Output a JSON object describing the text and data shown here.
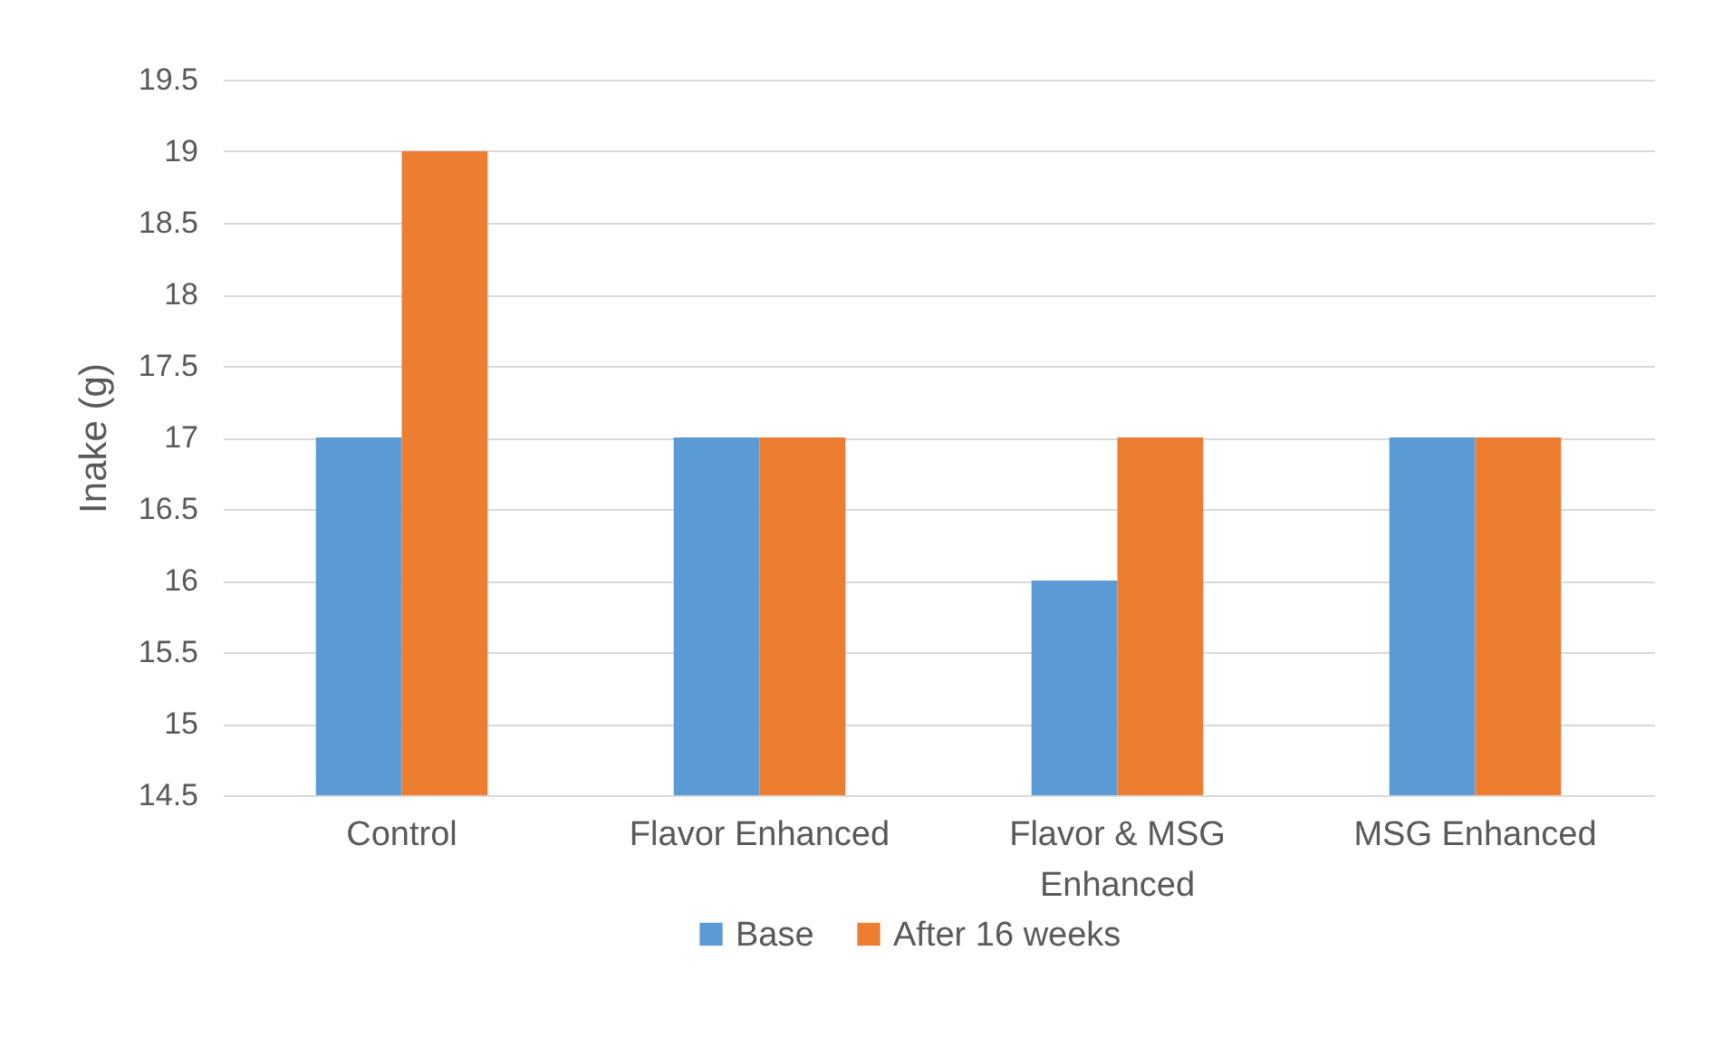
{
  "chart_data": {
    "type": "bar",
    "ylabel": "Inake (g)",
    "categories": [
      "Control",
      "Flavor Enhanced",
      "Flavor & MSG Enhanced",
      "MSG Enhanced"
    ],
    "series": [
      {
        "name": "Base",
        "color": "#5b9bd5",
        "values": [
          17,
          17,
          16,
          17
        ]
      },
      {
        "name": "After 16 weeks",
        "color": "#ed7d31",
        "values": [
          19,
          17,
          17,
          17
        ]
      }
    ],
    "ylim": [
      14.5,
      19.5
    ],
    "yticks": [
      14.5,
      15,
      15.5,
      16,
      16.5,
      17,
      17.5,
      18,
      18.5,
      19,
      19.5
    ],
    "grid": "y",
    "legend": "bottom"
  }
}
